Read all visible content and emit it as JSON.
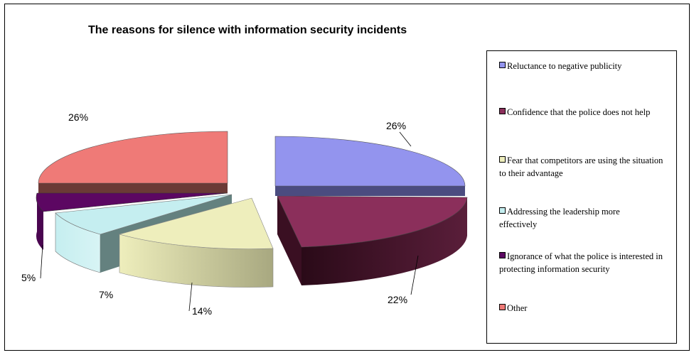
{
  "chart_data": {
    "type": "pie",
    "title": "The reasons for silence with information security incidents",
    "slices": [
      {
        "label": "Reluctance to negative publicity",
        "value": 26,
        "value_label": "26%",
        "color": "#9394EE"
      },
      {
        "label": "Confidence that the police does not help",
        "value": 22,
        "value_label": "22%",
        "color": "#8B2F5B"
      },
      {
        "label": "Fear that competitors are using the situation to their advantage",
        "value": 14,
        "value_label": "14%",
        "color": "#EEEEBC"
      },
      {
        "label": "Addressing the leadership more effectively",
        "value": 7,
        "value_label": "7%",
        "color": "#C5EEF0"
      },
      {
        "label": "Ignorance of what the police is interested in protecting information security",
        "value": 5,
        "value_label": "5%",
        "color": "#5C0762"
      },
      {
        "label": "Other",
        "value": 26,
        "value_label": "26%",
        "color": "#EF7A77"
      }
    ],
    "legend_position": "right",
    "exploded": true,
    "three_d": true
  }
}
